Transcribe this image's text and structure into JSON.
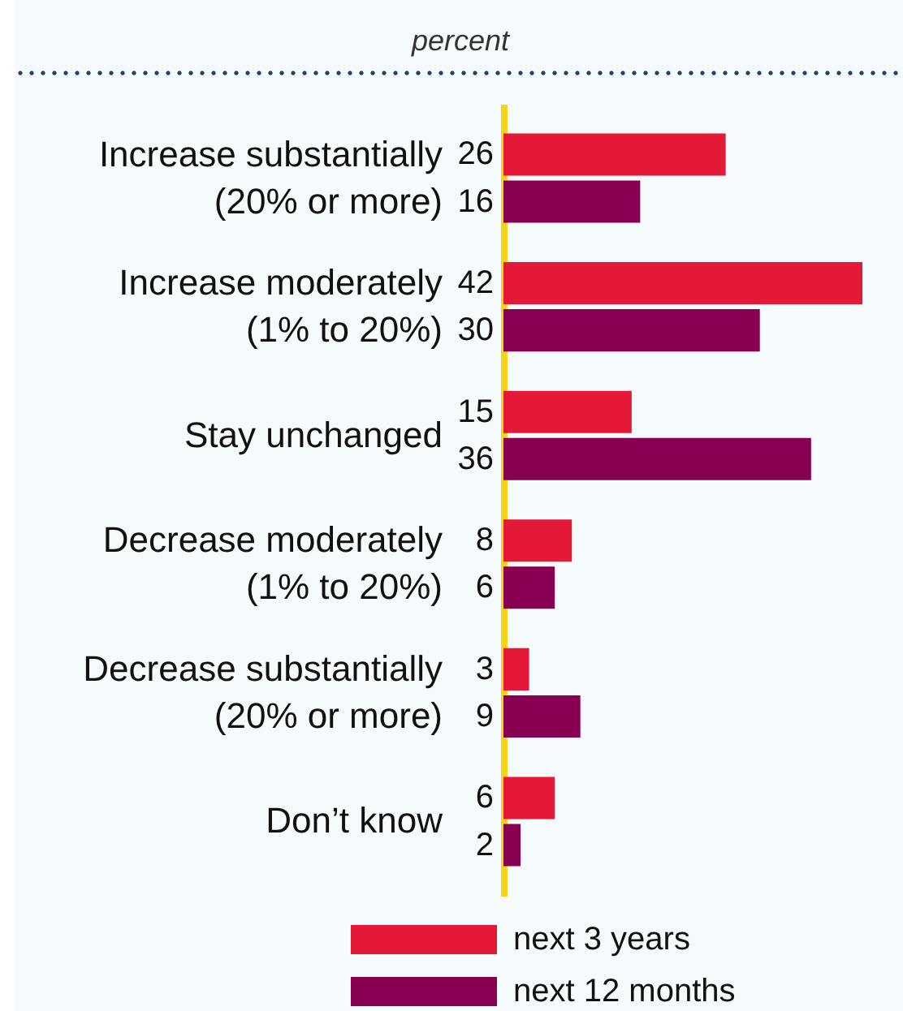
{
  "chart_data": {
    "type": "bar",
    "orientation": "horizontal",
    "title": "percent",
    "categories": [
      "Increase substantially\n(20% or more)",
      "Increase moderately\n(1% to 20%)",
      "Stay unchanged",
      "Decrease moderately\n(1% to 20%)",
      "Decrease substantially\n(20% or more)",
      "Don’t know"
    ],
    "series": [
      {
        "name": "next 3 years",
        "color": "#e31937",
        "values": [
          26,
          42,
          15,
          8,
          3,
          6
        ]
      },
      {
        "name": "next 12 months",
        "color": "#870052",
        "values": [
          16,
          30,
          36,
          6,
          9,
          2
        ]
      }
    ],
    "data_labels": true,
    "legend": "bottom",
    "tick_labels": "y"
  }
}
